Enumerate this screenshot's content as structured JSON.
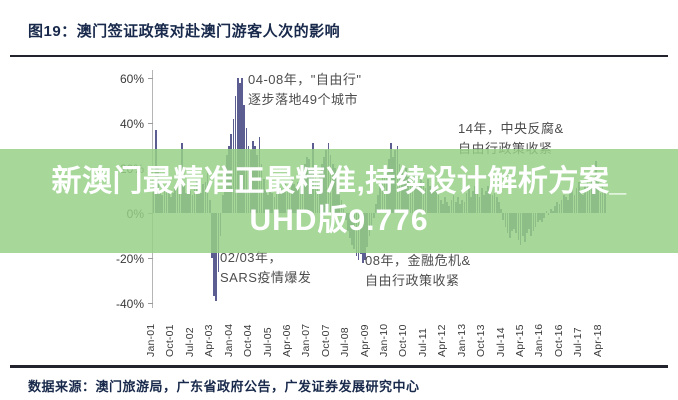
{
  "title": "图19：澳门签证政策对赴澳门游客人次的影响",
  "source": "数据来源：澳门旅游局，广东省政府公告，广发证券发展研究中心",
  "watermark": {
    "line1": "新澳门最精准正最精准,持续设计解析方案_",
    "line2": "UHD版9.776",
    "bg_color": "#96d087",
    "text_color": "#ffffff"
  },
  "colors": {
    "bar": "#5c5d90",
    "title_text": "#18294b",
    "annotation_text": "#4d4d4d",
    "axis_line": "#b5b5b5",
    "divider": "#23232e"
  },
  "annotations": {
    "freetravel": {
      "line1": "04-08年，\"自由行\"",
      "line2": "逐步落地49个城市"
    },
    "anticorruption": {
      "line1": "14年，中央反腐&",
      "line2": "自由行政策收紧"
    },
    "sars": {
      "line1": "02/03年，",
      "line2": "SARS疫情爆发"
    },
    "crisis": {
      "line1": "08年，金融危机&",
      "line2": "自由行政策收紧"
    }
  },
  "chart_data": {
    "type": "bar",
    "title": "澳门签证政策对赴澳门游客人次的影响",
    "unit": "%",
    "x_frequency": "monthly",
    "x_start": "Jan-01",
    "x_end": "Jun-18",
    "x_tick_labels": [
      "Jan-01",
      "Oct-01",
      "Jul-02",
      "Apr-03",
      "Jan-04",
      "Oct-04",
      "Jul-05",
      "Apr-06",
      "Jan-07",
      "Oct-07",
      "Jul-08",
      "Apr-09",
      "Jan-10",
      "Oct-10",
      "Jul-11",
      "Apr-12",
      "Jan-13",
      "Oct-13",
      "Jul-14",
      "Apr-15",
      "Jan-16",
      "Oct-16",
      "Jul-17",
      "Apr-18"
    ],
    "y_ticks": [
      60,
      40,
      20,
      0,
      -20,
      -40
    ],
    "ylim": [
      -45,
      65
    ],
    "grid": false,
    "legend": false,
    "values": [
      12,
      37,
      20,
      10,
      8,
      12,
      14,
      10,
      7,
      9,
      12,
      15,
      10,
      31,
      14,
      9,
      12,
      10,
      8,
      12,
      15,
      11,
      9,
      13,
      14,
      18,
      6,
      -20,
      -37,
      -39,
      -26,
      -10,
      8,
      20,
      26,
      30,
      35,
      42,
      52,
      60,
      58,
      60,
      48,
      38,
      30,
      28,
      32,
      30,
      26,
      34,
      22,
      15,
      10,
      8,
      12,
      9,
      7,
      10,
      13,
      11,
      9,
      14,
      10,
      12,
      16,
      13,
      11,
      14,
      12,
      17,
      22,
      25,
      24,
      20,
      31,
      16,
      14,
      18,
      22,
      25,
      28,
      31,
      26,
      22,
      20,
      16,
      11,
      6,
      2,
      -3,
      -8,
      -11,
      -14,
      -16,
      -19,
      -21,
      -18,
      -22,
      -21,
      -15,
      -10,
      -6,
      -2,
      4,
      8,
      12,
      16,
      20,
      18,
      24,
      31,
      25,
      28,
      30,
      22,
      18,
      15,
      20,
      16,
      14,
      16,
      19,
      15,
      12,
      17,
      14,
      11,
      15,
      12,
      10,
      13,
      11,
      8,
      6,
      4,
      7,
      5,
      3,
      6,
      8,
      5,
      7,
      4,
      6,
      5,
      9,
      11,
      7,
      10,
      12,
      9,
      7,
      11,
      8,
      10,
      12,
      10,
      8,
      9,
      7,
      5,
      2,
      -3,
      -6,
      -9,
      -11,
      -8,
      -7,
      -9,
      -12,
      -14,
      -10,
      -13,
      -9,
      -7,
      -10,
      -8,
      -6,
      -4,
      -3,
      -4,
      -2,
      1,
      -1,
      2,
      1,
      3,
      5,
      4,
      6,
      8,
      7,
      6,
      9,
      12,
      8,
      11,
      14,
      10,
      8,
      12,
      15,
      13,
      16,
      12,
      23,
      14,
      9,
      13,
      10
    ]
  }
}
